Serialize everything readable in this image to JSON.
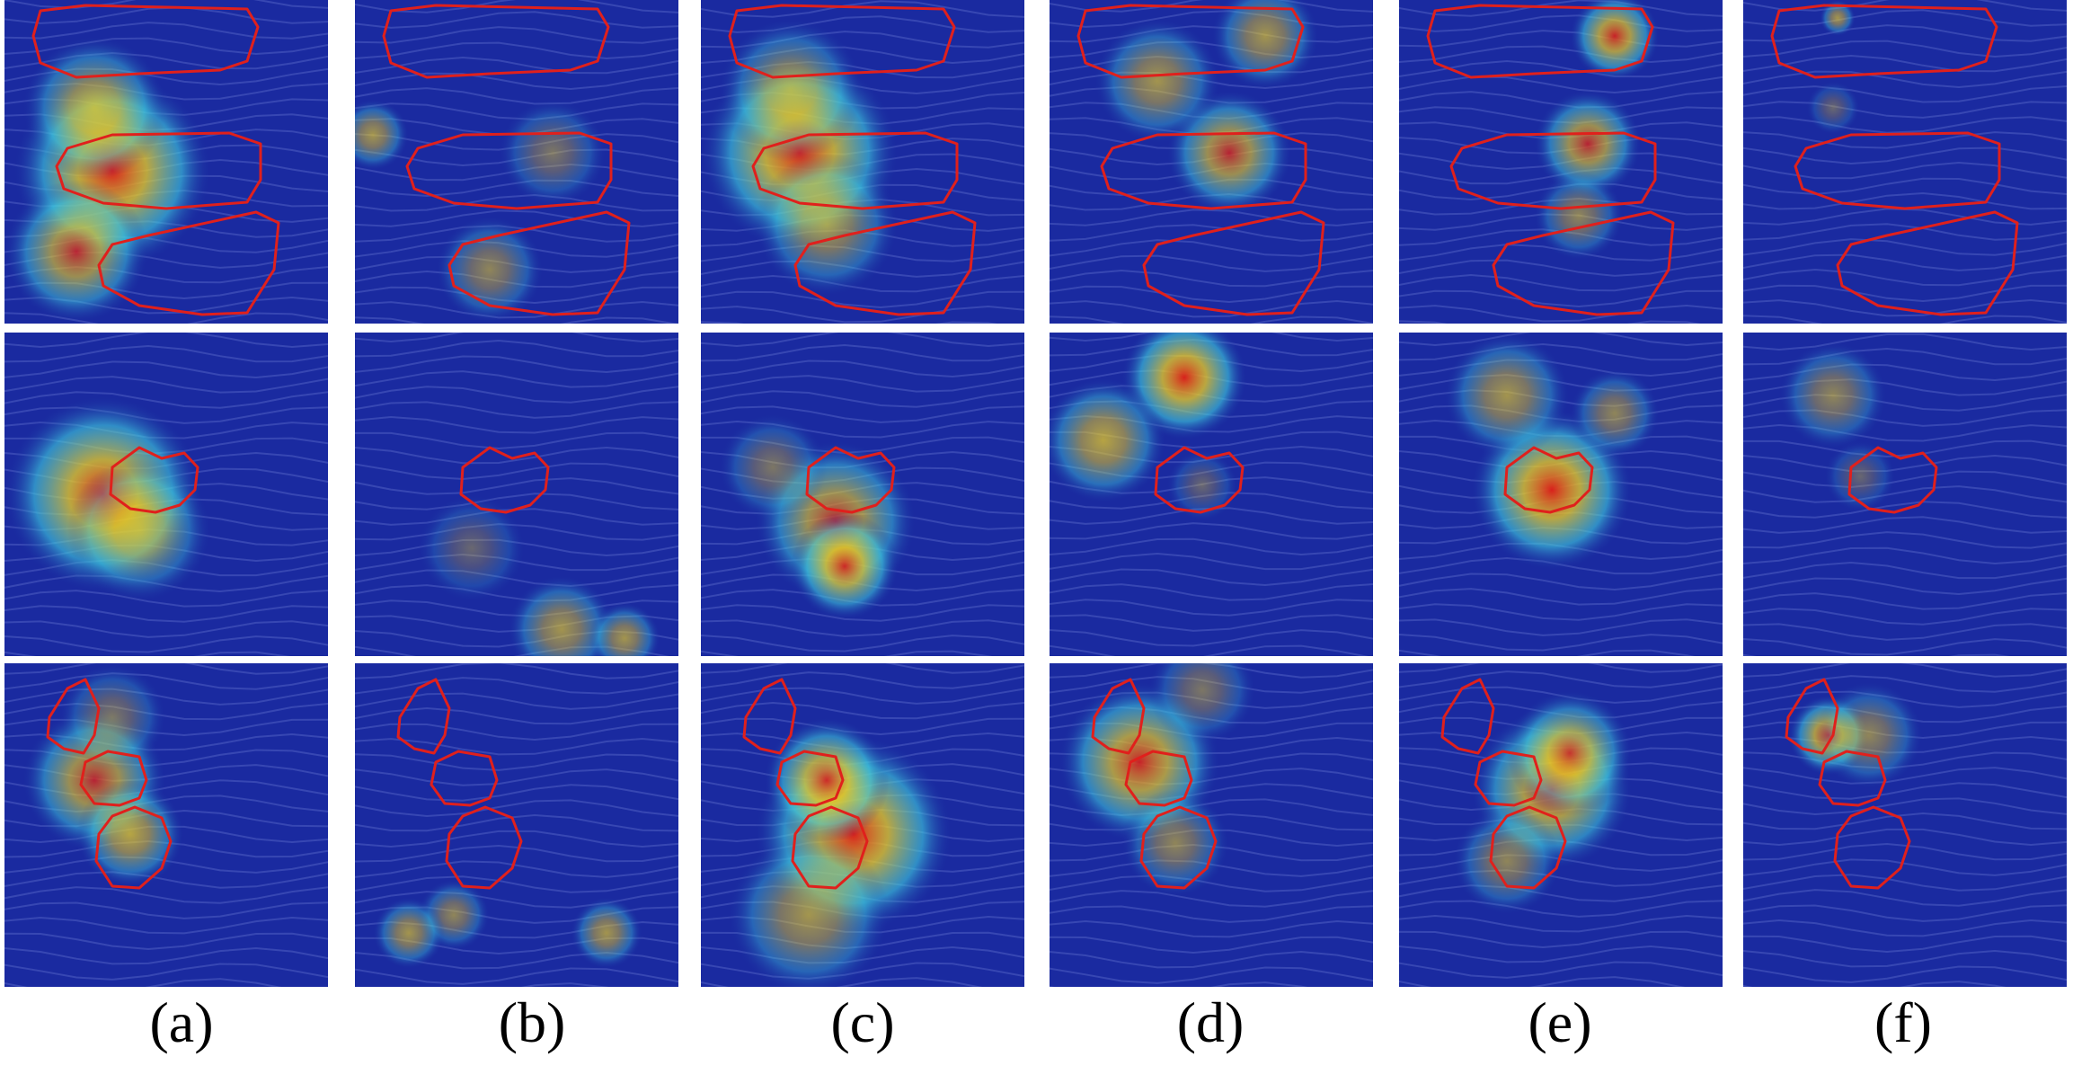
{
  "figure": {
    "columns": [
      {
        "label": "(a)"
      },
      {
        "label": "(b)"
      },
      {
        "label": "(c)"
      },
      {
        "label": "(d)"
      },
      {
        "label": "(e)"
      },
      {
        "label": "(f)"
      }
    ],
    "rows": [
      {
        "scene": "three-landslide-regions"
      },
      {
        "scene": "single-landslide-region"
      },
      {
        "scene": "chain-landslide-region"
      }
    ],
    "colors": {
      "outline": "#e0201c",
      "heat_low": "#1a2aa0",
      "heat_mid": "#3fd0e0",
      "heat_high": "#d8201c",
      "background": "#ffffff"
    }
  }
}
